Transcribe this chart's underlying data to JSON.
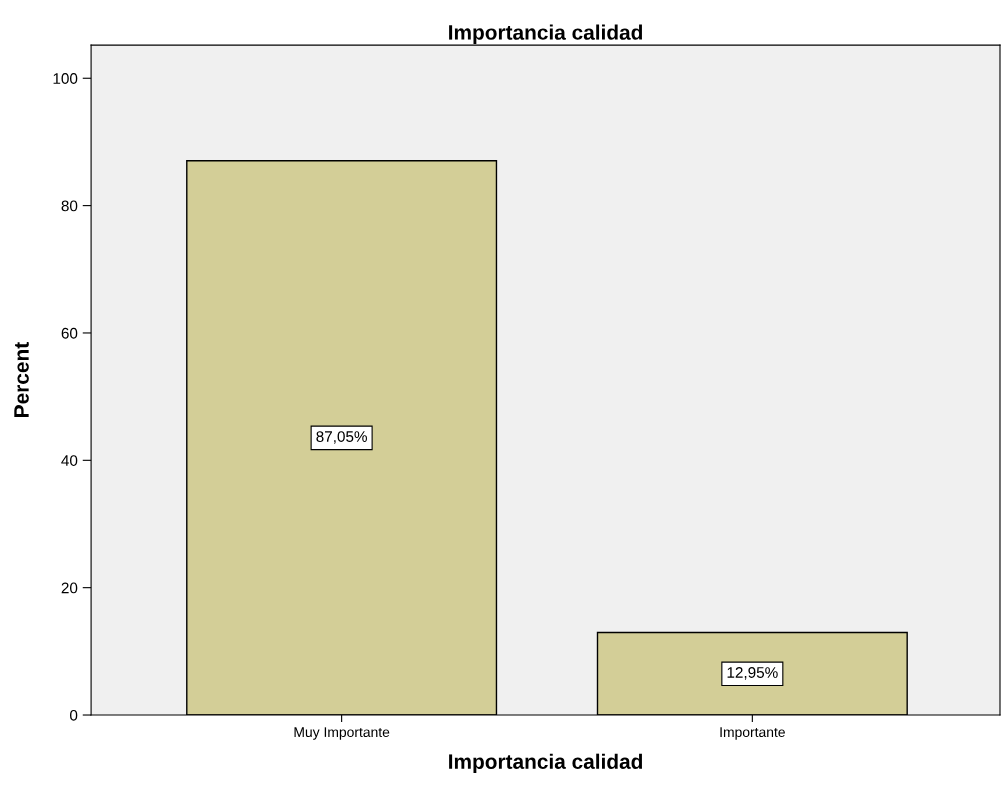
{
  "chart_data": {
    "type": "bar",
    "title": "Importancia calidad",
    "xlabel": "Importancia calidad",
    "ylabel": "Percent",
    "categories": [
      "Muy Importante",
      "Importante"
    ],
    "values": [
      87.05,
      12.95
    ],
    "value_labels": [
      "87,05%",
      "12,95%"
    ],
    "color": "#d3ce97",
    "ylim": [
      0,
      105.2
    ],
    "yticks": [
      0,
      20,
      40,
      60,
      80,
      100
    ],
    "grid": false
  }
}
